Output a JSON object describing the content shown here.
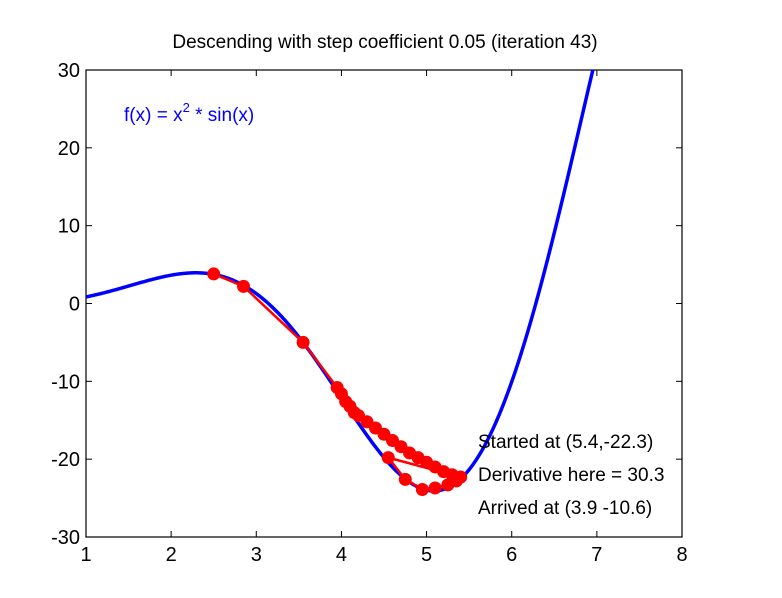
{
  "chart_data": {
    "type": "line",
    "title": "Descending with step coefficient 0.05 (iteration 43)",
    "xlabel": "",
    "ylabel": "",
    "xlim": [
      1,
      8
    ],
    "ylim": [
      -30,
      30
    ],
    "xticks": [
      1,
      2,
      3,
      4,
      5,
      6,
      7,
      8
    ],
    "yticks": [
      -30,
      -20,
      -10,
      0,
      10,
      20,
      30
    ],
    "grid": false,
    "function_label": {
      "prefix": "f(x) = x",
      "superscript": "2",
      "suffix": " * sin(x)"
    },
    "series": [
      {
        "name": "f(x) = x^2 * sin(x)",
        "style": "curve",
        "color": "#0000ff",
        "function": "x^2*sin(x)",
        "x_range": [
          1,
          7.1
        ]
      },
      {
        "name": "descent path",
        "style": "line-markers",
        "color": "#ff0000",
        "points": [
          [
            2.5,
            3.8
          ],
          [
            2.85,
            2.2
          ],
          [
            3.55,
            -5.0
          ],
          [
            3.95,
            -10.8
          ],
          [
            4.0,
            -11.6
          ],
          [
            4.05,
            -12.6
          ],
          [
            4.1,
            -13.2
          ],
          [
            4.15,
            -14.0
          ],
          [
            4.2,
            -14.4
          ],
          [
            4.3,
            -15.2
          ],
          [
            4.4,
            -16.0
          ],
          [
            4.5,
            -16.8
          ],
          [
            4.6,
            -17.6
          ],
          [
            4.7,
            -18.4
          ],
          [
            4.8,
            -19.2
          ],
          [
            4.9,
            -19.8
          ],
          [
            5.0,
            -20.4
          ],
          [
            5.1,
            -21.0
          ],
          [
            5.2,
            -21.6
          ],
          [
            5.3,
            -22.0
          ],
          [
            5.4,
            -22.3
          ],
          [
            5.35,
            -22.8
          ],
          [
            5.25,
            -23.3
          ],
          [
            5.1,
            -23.7
          ],
          [
            4.95,
            -23.9
          ],
          [
            4.75,
            -22.6
          ],
          [
            4.55,
            -19.8
          ],
          [
            5.4,
            -22.3
          ]
        ]
      }
    ],
    "annotations": [
      "Started at (5.4,-22.3)",
      "Derivative here = 30.3",
      "Arrived at (3.9 -10.6)"
    ],
    "colors": {
      "curve": "#0000ff",
      "path": "#ff0000",
      "axes": "#000000",
      "function_label": "#0000ff"
    }
  }
}
